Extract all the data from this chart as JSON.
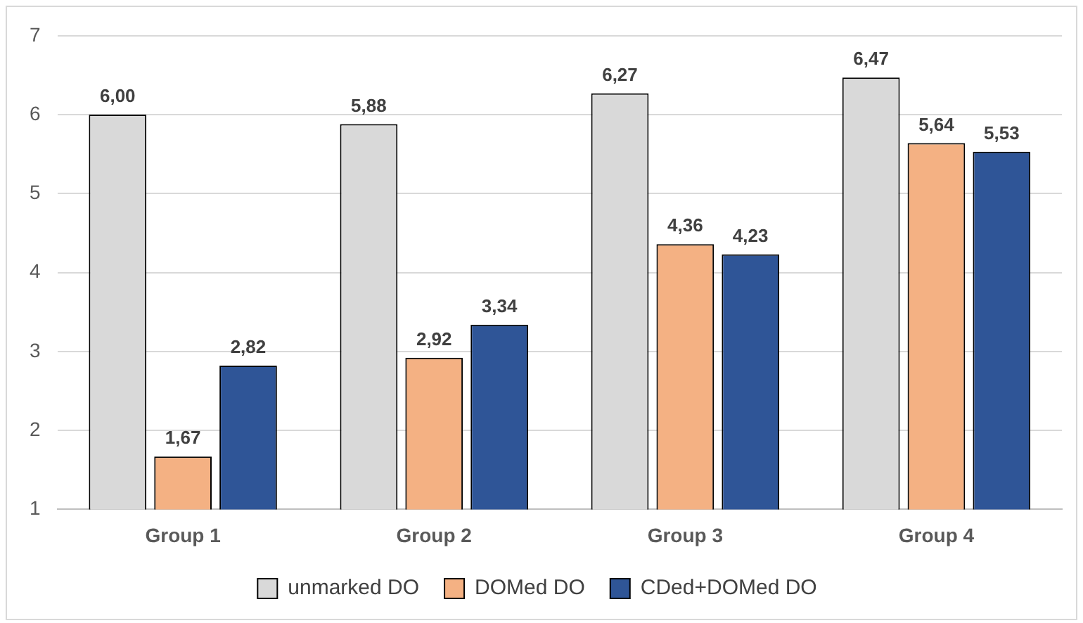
{
  "chart_data": {
    "type": "bar",
    "categories": [
      "Group 1",
      "Group 2",
      "Group 3",
      "Group 4"
    ],
    "series": [
      {
        "name": "unmarked DO",
        "color": "#d9d9d9",
        "values": [
          6.0,
          5.88,
          6.27,
          6.47
        ],
        "value_labels": [
          "6,00",
          "5,88",
          "6,27",
          "6,47"
        ]
      },
      {
        "name": "DOMed DO",
        "color": "#f4b183",
        "values": [
          1.67,
          2.92,
          4.36,
          5.64
        ],
        "value_labels": [
          "1,67",
          "2,92",
          "4,36",
          "5,64"
        ]
      },
      {
        "name": "CDed+DOMed DO",
        "color": "#2f5597",
        "values": [
          2.82,
          3.34,
          4.23,
          5.53
        ],
        "value_labels": [
          "2,82",
          "3,34",
          "4,23",
          "5,53"
        ]
      }
    ],
    "ylim": [
      1,
      7
    ],
    "yticks": [
      1,
      2,
      3,
      4,
      5,
      6,
      7
    ],
    "grid": "y",
    "legend": "bottom"
  }
}
